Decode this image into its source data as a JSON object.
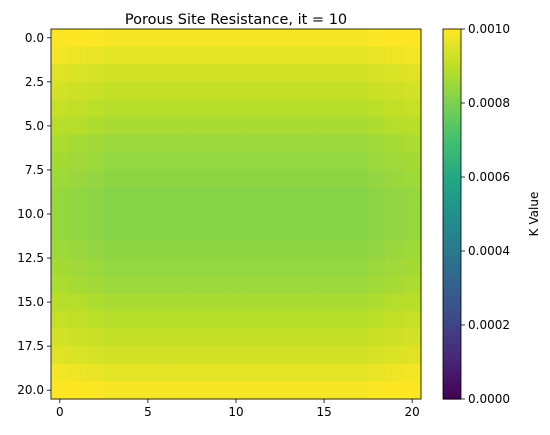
{
  "chart_data": {
    "type": "heatmap",
    "title": "Porous Site Resistance, it = 10",
    "x_range": [
      -0.5,
      20.5
    ],
    "y_range": [
      -0.5,
      20.5
    ],
    "y_inverted": true,
    "x_ticks": [
      0,
      5,
      10,
      15,
      20
    ],
    "x_tick_labels": [
      "0",
      "5",
      "10",
      "15",
      "20"
    ],
    "y_ticks": [
      0,
      2.5,
      5,
      7.5,
      10,
      12.5,
      15,
      17.5,
      20
    ],
    "y_tick_labels": [
      "0.0",
      "2.5",
      "5.0",
      "7.5",
      "10.0",
      "12.5",
      "15.0",
      "17.5",
      "20.0"
    ],
    "colormap": "viridis",
    "colorbar": {
      "label": "K Value",
      "vmin": 0.0,
      "vmax": 0.001,
      "ticks": [
        0.0,
        0.0002,
        0.0004,
        0.0006,
        0.0008,
        0.001
      ],
      "tick_labels": [
        "0.0000",
        "0.0002",
        "0.0004",
        "0.0006",
        "0.0008",
        "0.0010"
      ]
    },
    "row_values": [
      0.00099,
      0.00096,
      0.00093,
      0.00091,
      0.00089,
      0.00087,
      0.00085,
      0.00084,
      0.00083,
      0.00082,
      0.00082,
      0.00082,
      0.00083,
      0.00084,
      0.00085,
      0.00087,
      0.00089,
      0.00091,
      0.00093,
      0.00096,
      0.00099
    ],
    "grid": false
  }
}
